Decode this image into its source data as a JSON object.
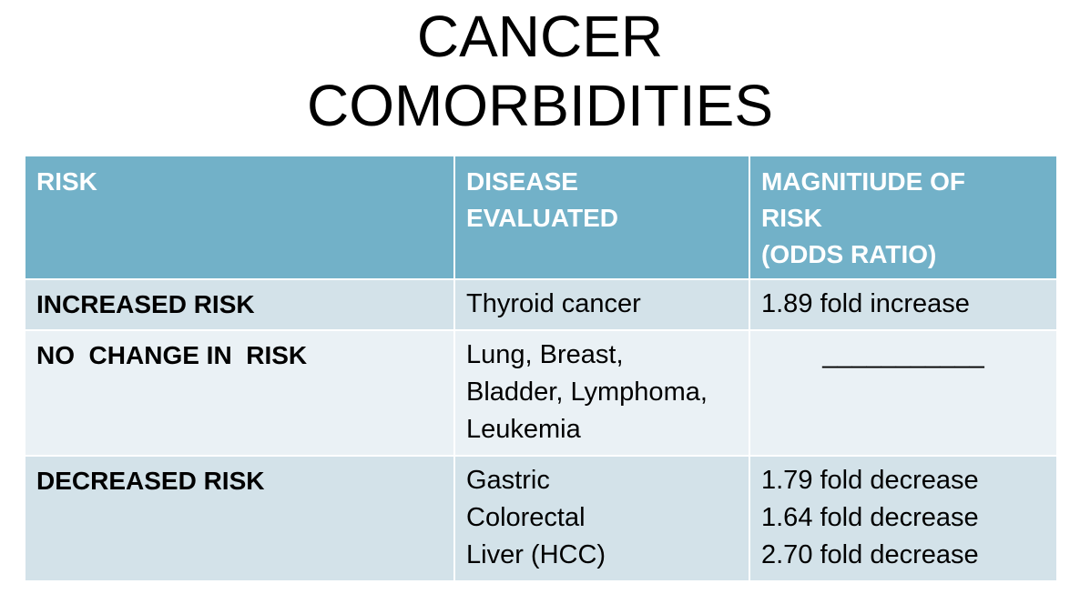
{
  "title": {
    "line1": "CANCER",
    "line2": "COMORBIDITIES"
  },
  "table": {
    "headers": {
      "risk": "RISK",
      "disease_line1": "DISEASE",
      "disease_line2": "EVALUATED",
      "magnitude_line1": "MAGNITIUDE OF",
      "magnitude_line2": "RISK",
      "magnitude_line3": "(ODDS RATIO)"
    },
    "rows": [
      {
        "risk": "INCREASED RISK",
        "disease": [
          "Thyroid cancer"
        ],
        "magnitude": [
          "1.89 fold increase"
        ]
      },
      {
        "risk": "NO  CHANGE IN  RISK",
        "disease": [
          "Lung, Breast,",
          "Bladder, Lymphoma,",
          "Leukemia"
        ],
        "magnitude": [
          "___________"
        ]
      },
      {
        "risk": "DECREASED RISK",
        "disease": [
          "Gastric",
          "Colorectal",
          "Liver (HCC)"
        ],
        "magnitude": [
          "1.79 fold decrease",
          "1.64 fold decrease",
          "2.70 fold decrease"
        ]
      }
    ]
  },
  "colors": {
    "header_bg": "#72b1c8",
    "row_odd_bg": "#d3e2e9",
    "row_even_bg": "#eaf1f5"
  }
}
